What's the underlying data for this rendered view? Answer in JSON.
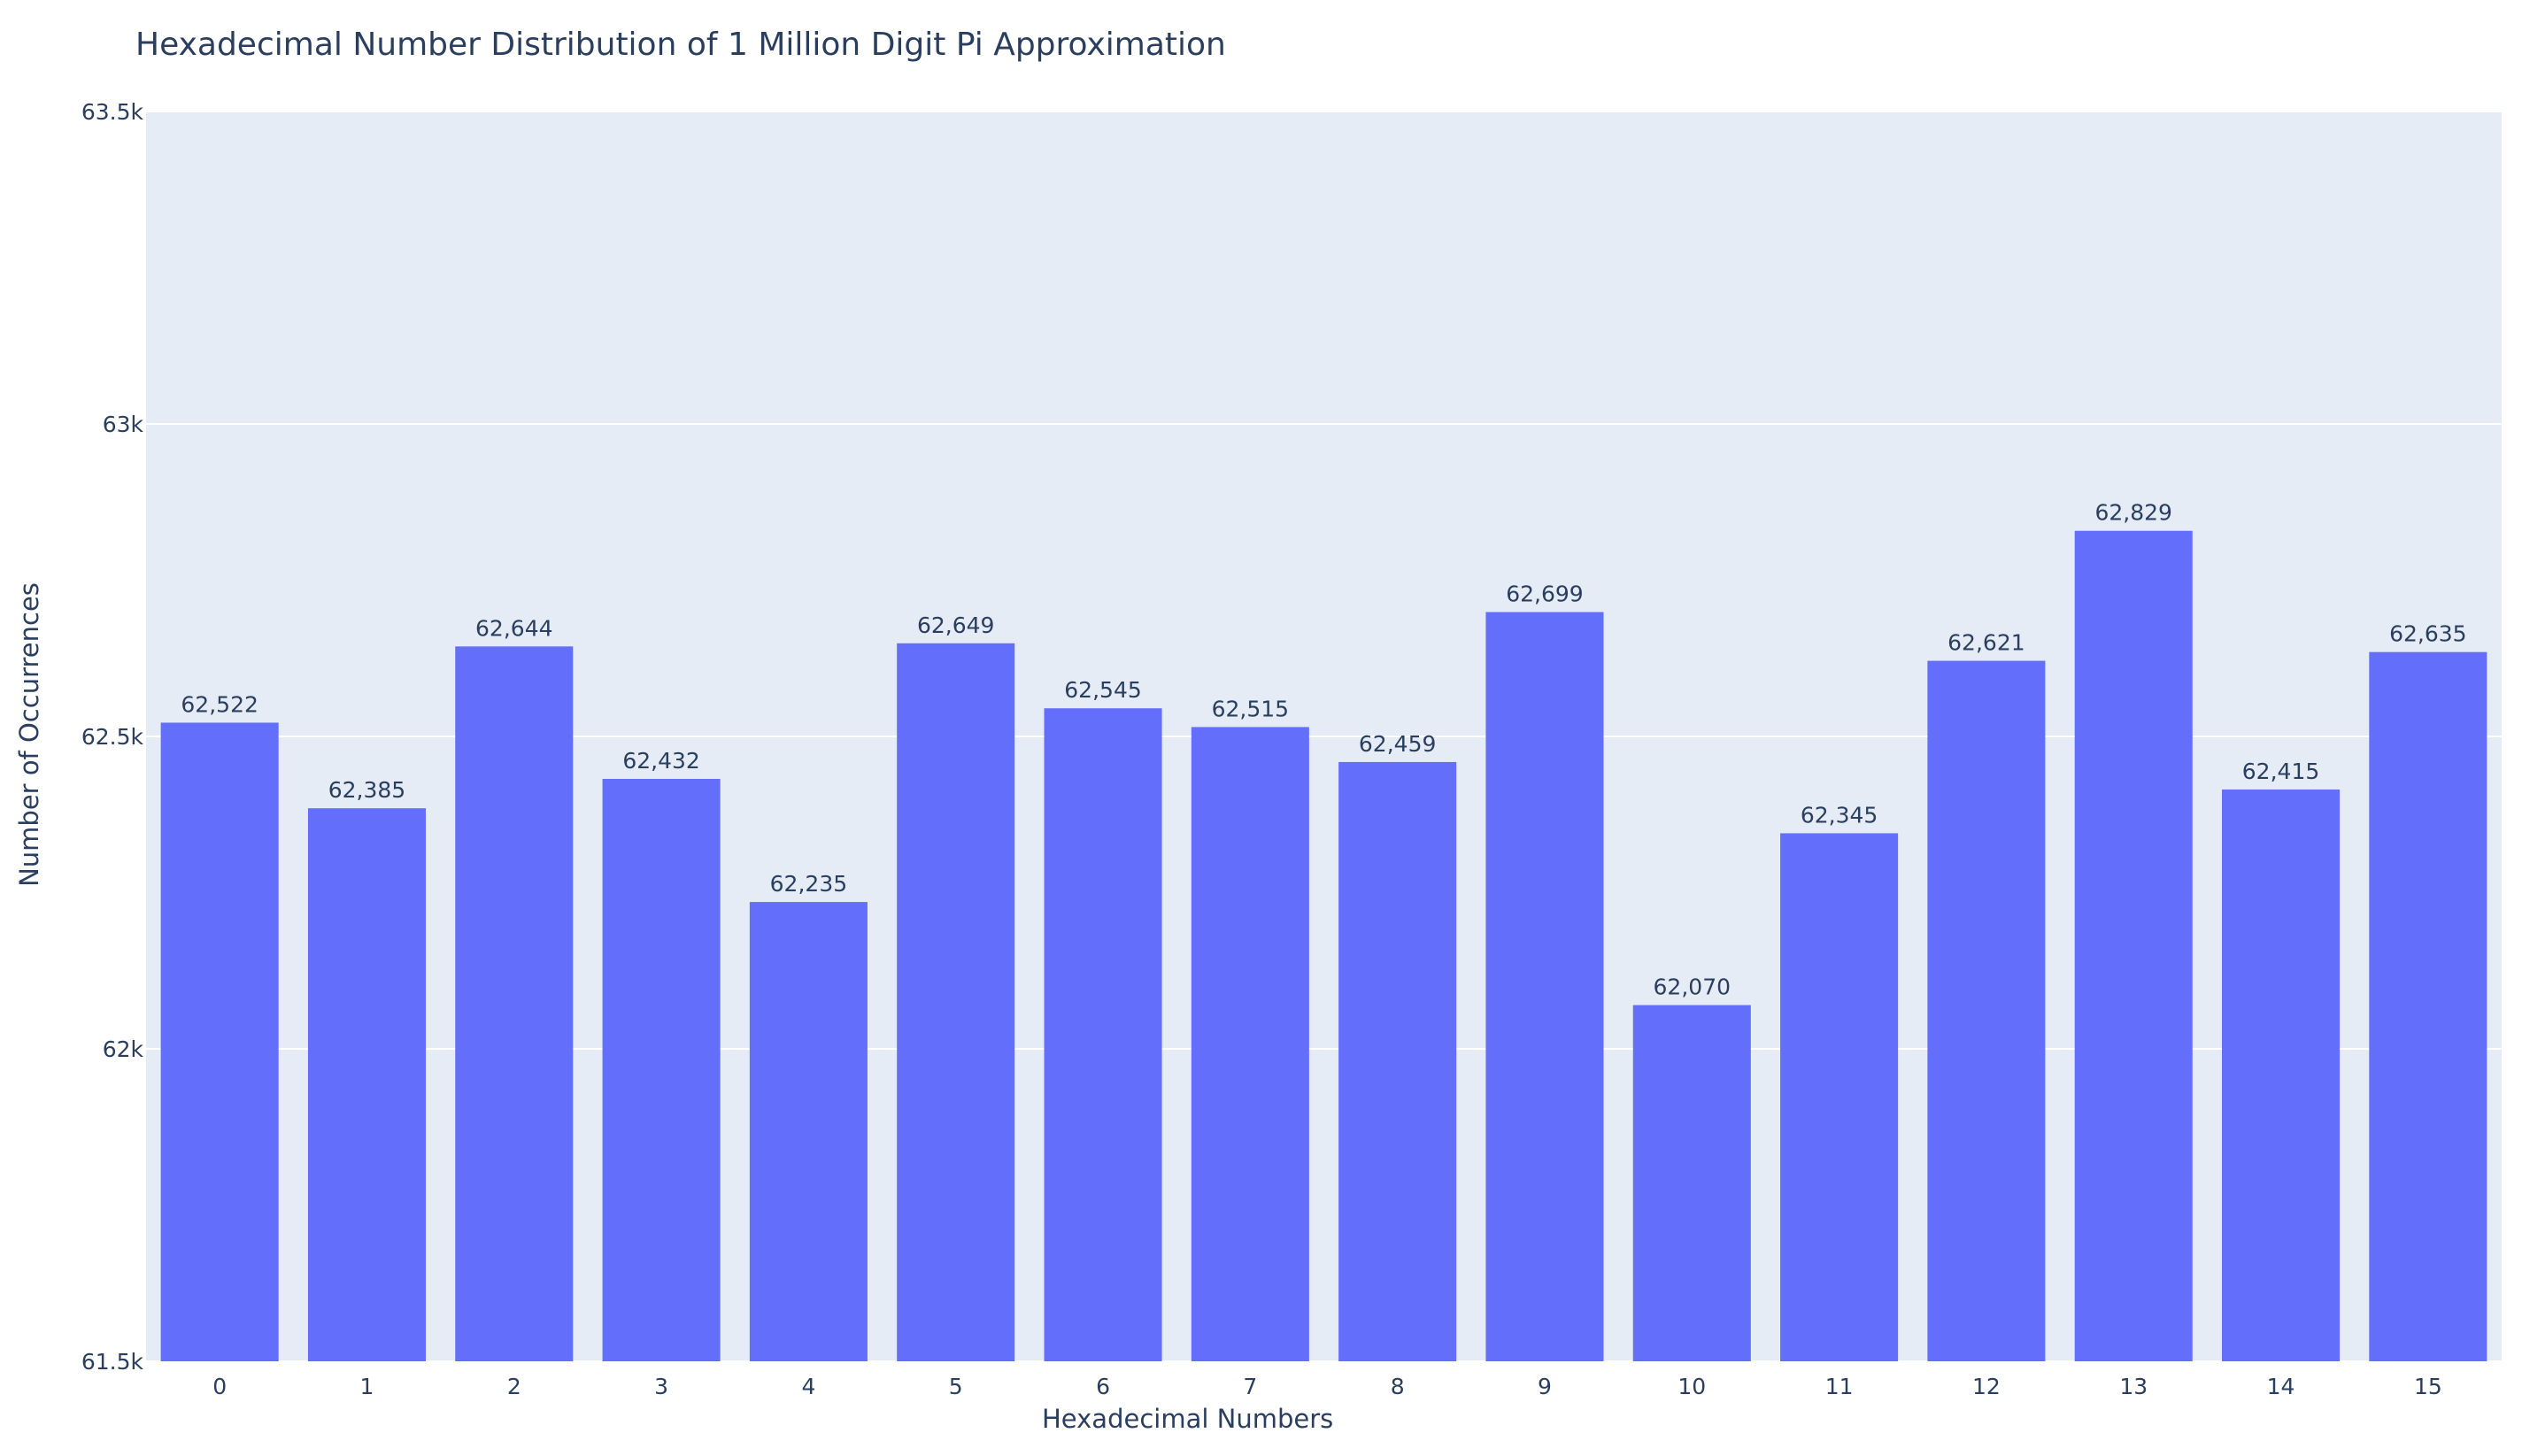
{
  "chart_data": {
    "type": "bar",
    "title": "Hexadecimal Number Distribution of 1 Million Digit Pi Approximation",
    "xlabel": "Hexadecimal Numbers",
    "ylabel": "Number of Occurrences",
    "categories": [
      "0",
      "1",
      "2",
      "3",
      "4",
      "5",
      "6",
      "7",
      "8",
      "9",
      "10",
      "11",
      "12",
      "13",
      "14",
      "15"
    ],
    "values": [
      62522,
      62385,
      62644,
      62432,
      62235,
      62649,
      62545,
      62515,
      62459,
      62699,
      62070,
      62345,
      62621,
      62829,
      62415,
      62635
    ],
    "data_labels": [
      "62,522",
      "62,385",
      "62,644",
      "62,432",
      "62,235",
      "62,649",
      "62,545",
      "62,515",
      "62,459",
      "62,699",
      "62,070",
      "62,345",
      "62,621",
      "62,829",
      "62,415",
      "62,635"
    ],
    "ylim": [
      61500,
      63500
    ],
    "yticks": [
      61500,
      62000,
      62500,
      63000,
      63500
    ],
    "ytick_labels": [
      "61.5k",
      "62k",
      "62.5k",
      "63k",
      "63.5k"
    ],
    "grid": true,
    "legend": "none",
    "colors": {
      "bar": "#636efa",
      "plot_background": "#e5ecf6",
      "gridline": "#ffffff",
      "text": "#2a3f5f",
      "paper": "#ffffff"
    }
  }
}
